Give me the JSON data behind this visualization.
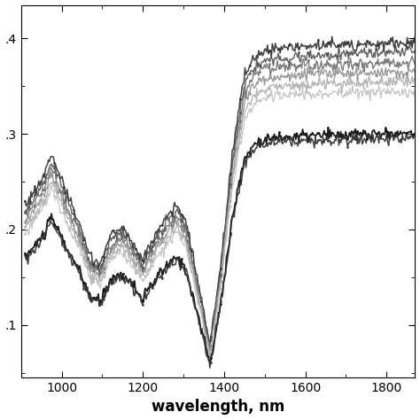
{
  "xlim": [
    900,
    1870
  ],
  "ylim": [
    0.045,
    0.435
  ],
  "xlabel": "wavelength, nm",
  "xticks": [
    1000,
    1200,
    1400,
    1600,
    1800
  ],
  "yticks": [
    0.1,
    0.2,
    0.3,
    0.4
  ],
  "ytick_labels": [
    ".1",
    ".2",
    ".3",
    ".4"
  ],
  "wl_nodes": [
    910,
    940,
    960,
    975,
    990,
    1010,
    1040,
    1070,
    1095,
    1120,
    1150,
    1175,
    1200,
    1230,
    1260,
    1285,
    1305,
    1325,
    1345,
    1365,
    1390,
    1420,
    1450,
    1480,
    1510,
    1600,
    1870
  ],
  "shape_norm": [
    0.58,
    0.63,
    0.67,
    0.72,
    0.68,
    0.62,
    0.54,
    0.44,
    0.42,
    0.5,
    0.52,
    0.48,
    0.43,
    0.5,
    0.55,
    0.58,
    0.54,
    0.43,
    0.32,
    0.2,
    0.4,
    0.72,
    0.93,
    0.99,
    1.0,
    1.01,
    1.02
  ],
  "groupA": [
    {
      "scale": 0.388,
      "color": "#222222",
      "lw": 1.1,
      "seed": 1,
      "marker": true
    },
    {
      "scale": 0.378,
      "color": "#444444",
      "lw": 1.0,
      "seed": 2,
      "marker": true
    },
    {
      "scale": 0.368,
      "color": "#666666",
      "lw": 1.0,
      "seed": 3,
      "marker": true
    },
    {
      "scale": 0.358,
      "color": "#888888",
      "lw": 1.0,
      "seed": 4,
      "marker": true
    },
    {
      "scale": 0.348,
      "color": "#aaaaaa",
      "lw": 1.0,
      "seed": 5,
      "marker": true
    },
    {
      "scale": 0.338,
      "color": "#bbbbbb",
      "lw": 0.9,
      "seed": 6,
      "marker": true
    }
  ],
  "groupB": [
    {
      "scale": 0.295,
      "color": "#111111",
      "lw": 1.3,
      "seed": 10,
      "marker": true
    },
    {
      "scale": 0.29,
      "color": "#333333",
      "lw": 1.1,
      "seed": 11,
      "marker": true
    }
  ],
  "noise_std": 0.003,
  "marker_every": 10,
  "markersize": 2.0,
  "xlabel_fontsize": 12,
  "xlabel_fontweight": "bold"
}
